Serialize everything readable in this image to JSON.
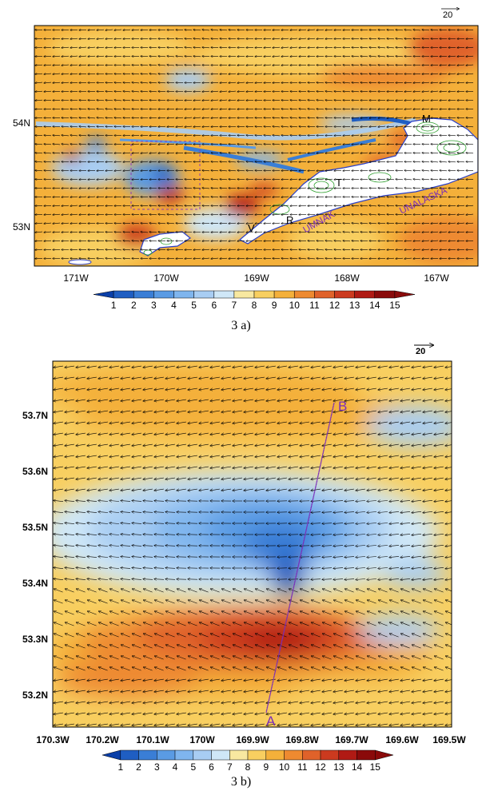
{
  "colors": {
    "scale": [
      "#0a3fa8",
      "#1f5ec2",
      "#3a7ed6",
      "#5a9be4",
      "#7fb5ee",
      "#a8cdf3",
      "#cfe7f7",
      "#f8e8a0",
      "#f8cf60",
      "#f4b03a",
      "#ee8a30",
      "#e0622a",
      "#cc3a1f",
      "#b01a14",
      "#8a0a0a"
    ],
    "land": "#ffffff",
    "coast": "#2a3fc8",
    "terrain_contour": "#2fa02f",
    "label_purple": "#7a2db8",
    "box_purple": "#8a3ab8"
  },
  "panel_a": {
    "lon_labels": [
      "171W",
      "170W",
      "169W",
      "168W",
      "167W"
    ],
    "lat_labels": [
      "54N",
      "53N"
    ],
    "map_labels": [
      "M",
      "T",
      "R",
      "V",
      "UMNAK",
      "UNALASKA"
    ],
    "ref_vector_label": "20",
    "colorbar_labels": [
      "1",
      "2",
      "3",
      "4",
      "5",
      "6",
      "7",
      "8",
      "9",
      "10",
      "11",
      "12",
      "13",
      "14",
      "15"
    ],
    "caption": "3 a)"
  },
  "panel_b": {
    "lon_labels": [
      "170.3W",
      "170.2W",
      "170.1W",
      "170W",
      "169.9W",
      "169.8W",
      "169.7W",
      "169.6W",
      "169.5W"
    ],
    "lat_labels": [
      "53.7N",
      "53.6N",
      "53.5N",
      "53.4N",
      "53.3N",
      "53.2N"
    ],
    "section_labels": [
      "A",
      "B"
    ],
    "ref_vector_label": "20",
    "colorbar_labels": [
      "1",
      "2",
      "3",
      "4",
      "5",
      "6",
      "7",
      "8",
      "9",
      "10",
      "11",
      "12",
      "13",
      "14",
      "15"
    ],
    "caption": "3 b)"
  }
}
